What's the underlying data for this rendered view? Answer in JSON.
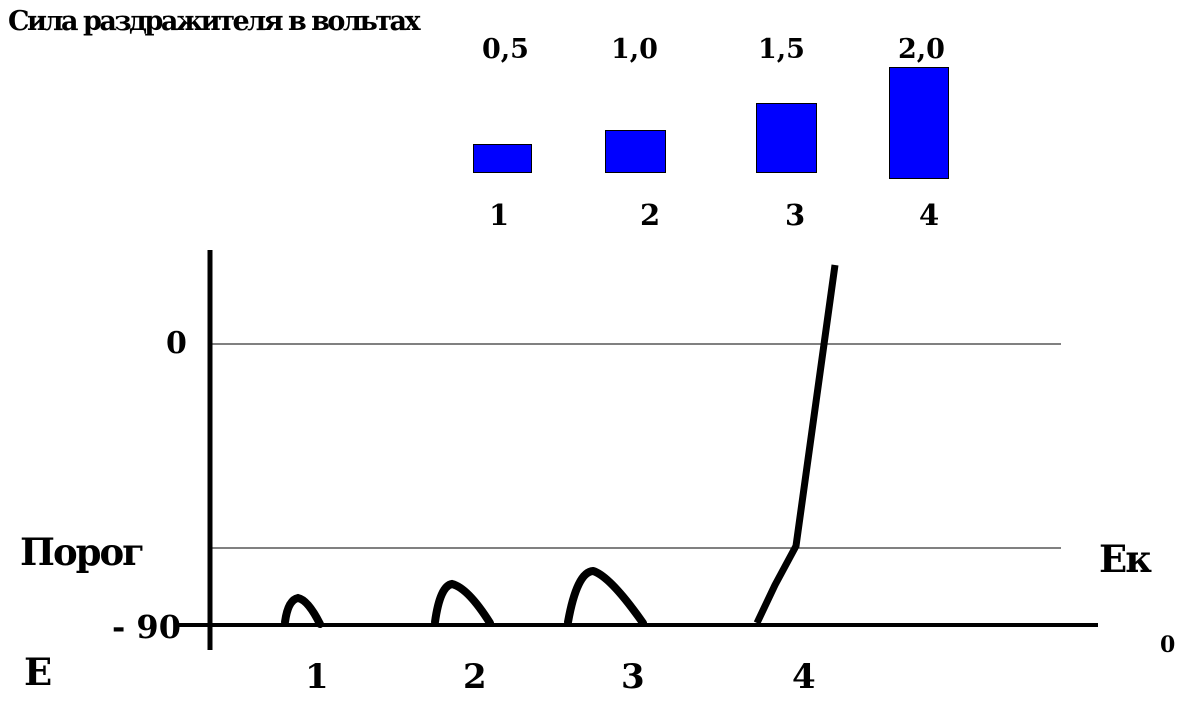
{
  "title": "Сила раздражителя в вольтах",
  "stimuli": [
    {
      "label": "1",
      "voltage": "0,5",
      "value": 0.5
    },
    {
      "label": "2",
      "voltage": "1,0",
      "value": 1.0
    },
    {
      "label": "3",
      "voltage": "1,5",
      "value": 1.5
    },
    {
      "label": "4",
      "voltage": "2,0",
      "value": 2.0
    }
  ],
  "axis": {
    "zero_label": "0",
    "threshold_label": "Порог",
    "rest_label": "- 90",
    "y_label": "E",
    "ek_label": "Eк",
    "origin_label": "0",
    "x_labels": [
      "1",
      "2",
      "3",
      "4"
    ]
  },
  "colors": {
    "bar": "#0000ff",
    "line": "#000000"
  }
}
